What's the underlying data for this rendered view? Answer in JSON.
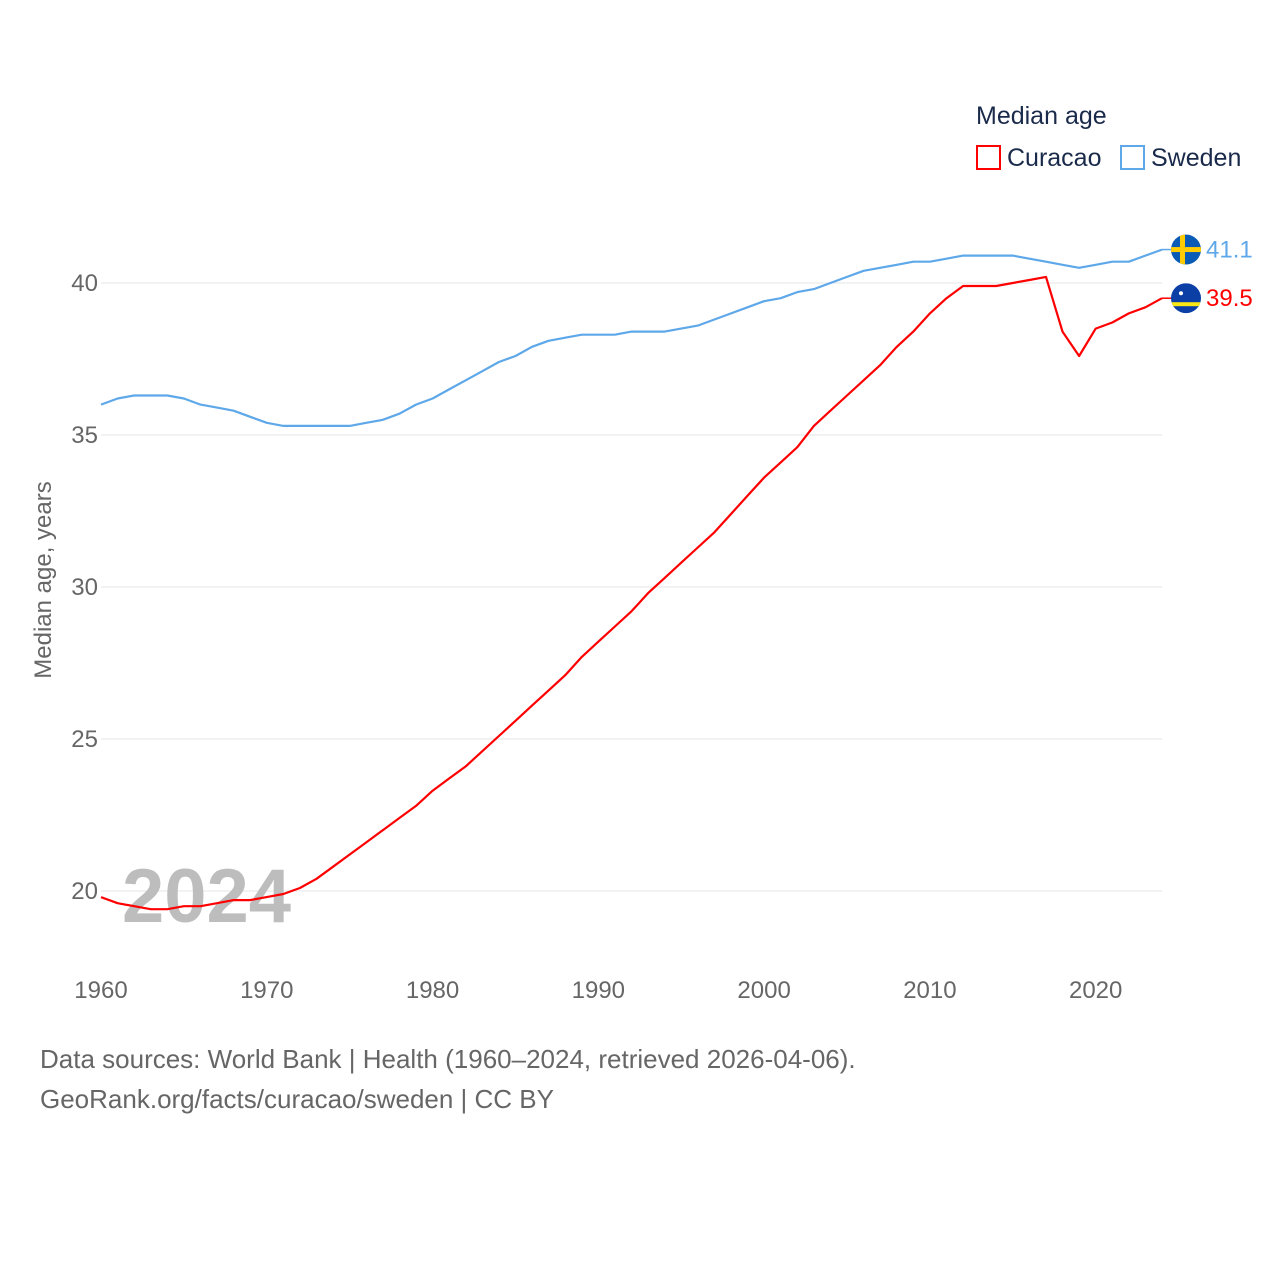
{
  "chart_data": {
    "type": "line",
    "title": "",
    "legend_title": "Median age",
    "legend_position": "top-right",
    "xlabel": "",
    "ylabel": "Median age, years",
    "xlim": [
      1960,
      2024
    ],
    "ylim": [
      18.5,
      42
    ],
    "x_ticks": [
      "1960",
      "1970",
      "1980",
      "1990",
      "2000",
      "2010",
      "2020"
    ],
    "y_ticks": [
      "20",
      "25",
      "30",
      "35",
      "40"
    ],
    "grid": true,
    "year_watermark": "2024",
    "x": [
      1960,
      1961,
      1962,
      1963,
      1964,
      1965,
      1966,
      1967,
      1968,
      1969,
      1970,
      1971,
      1972,
      1973,
      1974,
      1975,
      1976,
      1977,
      1978,
      1979,
      1980,
      1981,
      1982,
      1983,
      1984,
      1985,
      1986,
      1987,
      1988,
      1989,
      1990,
      1991,
      1992,
      1993,
      1994,
      1995,
      1996,
      1997,
      1998,
      1999,
      2000,
      2001,
      2002,
      2003,
      2004,
      2005,
      2006,
      2007,
      2008,
      2009,
      2010,
      2011,
      2012,
      2013,
      2014,
      2015,
      2016,
      2017,
      2018,
      2019,
      2020,
      2021,
      2022,
      2023,
      2024
    ],
    "series": [
      {
        "name": "Curacao",
        "color": "#ff0000",
        "end_label": "39.5",
        "flag": "curacao-flag",
        "values": [
          19.8,
          19.6,
          19.5,
          19.4,
          19.4,
          19.5,
          19.5,
          19.6,
          19.7,
          19.7,
          19.8,
          19.9,
          20.1,
          20.4,
          20.8,
          21.2,
          21.6,
          22.0,
          22.4,
          22.8,
          23.3,
          23.7,
          24.1,
          24.6,
          25.1,
          25.6,
          26.1,
          26.6,
          27.1,
          27.7,
          28.2,
          28.7,
          29.2,
          29.8,
          30.3,
          30.8,
          31.3,
          31.8,
          32.4,
          33.0,
          33.6,
          34.1,
          34.6,
          35.3,
          35.8,
          36.3,
          36.8,
          37.3,
          37.9,
          38.4,
          39.0,
          39.5,
          39.9,
          39.9,
          39.9,
          40.0,
          40.1,
          40.2,
          38.4,
          37.6,
          38.5,
          38.7,
          39.0,
          39.2,
          39.5
        ]
      },
      {
        "name": "Sweden",
        "color": "#5ea8ea",
        "end_label": "41.1",
        "flag": "sweden-flag",
        "values": [
          36.0,
          36.2,
          36.3,
          36.3,
          36.3,
          36.2,
          36.0,
          35.9,
          35.8,
          35.6,
          35.4,
          35.3,
          35.3,
          35.3,
          35.3,
          35.3,
          35.4,
          35.5,
          35.7,
          36.0,
          36.2,
          36.5,
          36.8,
          37.1,
          37.4,
          37.6,
          37.9,
          38.1,
          38.2,
          38.3,
          38.3,
          38.3,
          38.4,
          38.4,
          38.4,
          38.5,
          38.6,
          38.8,
          39.0,
          39.2,
          39.4,
          39.5,
          39.7,
          39.8,
          40.0,
          40.2,
          40.4,
          40.5,
          40.6,
          40.7,
          40.7,
          40.8,
          40.9,
          40.9,
          40.9,
          40.9,
          40.8,
          40.7,
          40.6,
          40.5,
          40.6,
          40.7,
          40.7,
          40.9,
          41.1
        ]
      }
    ]
  },
  "footer": {
    "sources": "Data sources: World Bank | Health (1960–2024, retrieved 2026-04-06).",
    "credit": "GeoRank.org/facts/curacao/sweden | CC BY"
  }
}
